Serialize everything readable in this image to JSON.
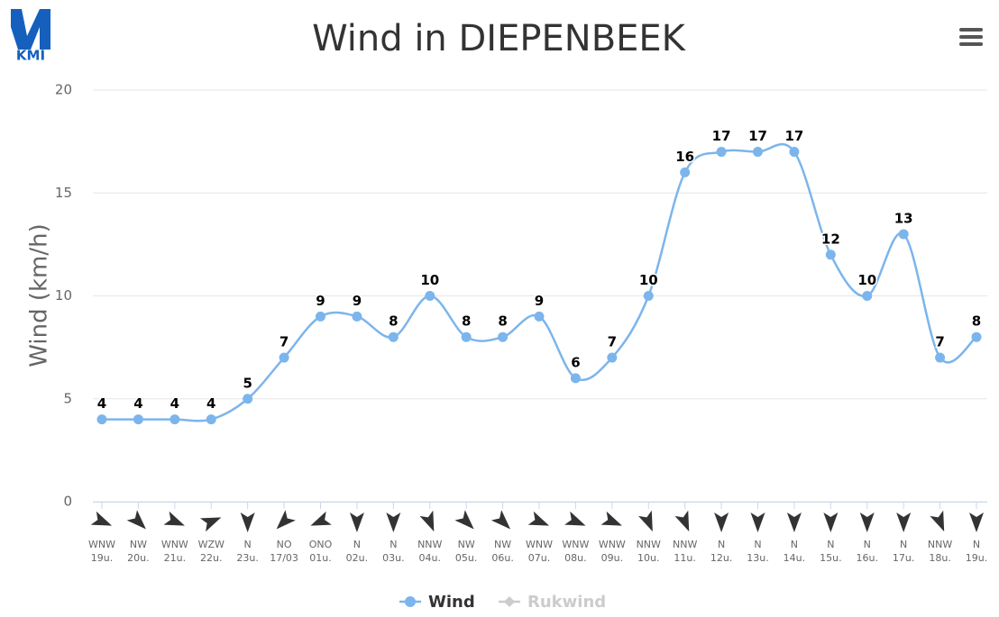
{
  "chart_data": {
    "type": "line",
    "title": "Wind in DIEPENBEEK",
    "logo": "KMI",
    "ylabel": "Wind (km/h)",
    "directions": [
      "WNW",
      "NW",
      "WNW",
      "WZW",
      "N",
      "NO",
      "ONO",
      "N",
      "N",
      "NNW",
      "NW",
      "NW",
      "WNW",
      "WNW",
      "WNW",
      "NNW",
      "NNW",
      "N",
      "N",
      "N",
      "N",
      "N",
      "N",
      "NNW",
      "N"
    ],
    "categories": [
      "19u.",
      "20u.",
      "21u.",
      "22u.",
      "23u.",
      "17/03",
      "01u.",
      "02u.",
      "03u.",
      "04u.",
      "05u.",
      "06u.",
      "07u.",
      "08u.",
      "09u.",
      "10u.",
      "11u.",
      "12u.",
      "13u.",
      "14u.",
      "15u.",
      "16u.",
      "17u.",
      "18u.",
      "19u."
    ],
    "series": [
      {
        "name": "Wind",
        "color": "#7cb5ec",
        "values": [
          4,
          4,
          4,
          4,
          5,
          7,
          9,
          9,
          8,
          10,
          8,
          8,
          9,
          6,
          7,
          10,
          16,
          17,
          17,
          17,
          12,
          10,
          13,
          7,
          8
        ]
      },
      {
        "name": "Rukwind",
        "color": "#cccccc",
        "visible": false
      }
    ],
    "ylim": [
      0,
      20
    ],
    "yticks": [
      0,
      5,
      10,
      15,
      20
    ],
    "grid": true
  }
}
